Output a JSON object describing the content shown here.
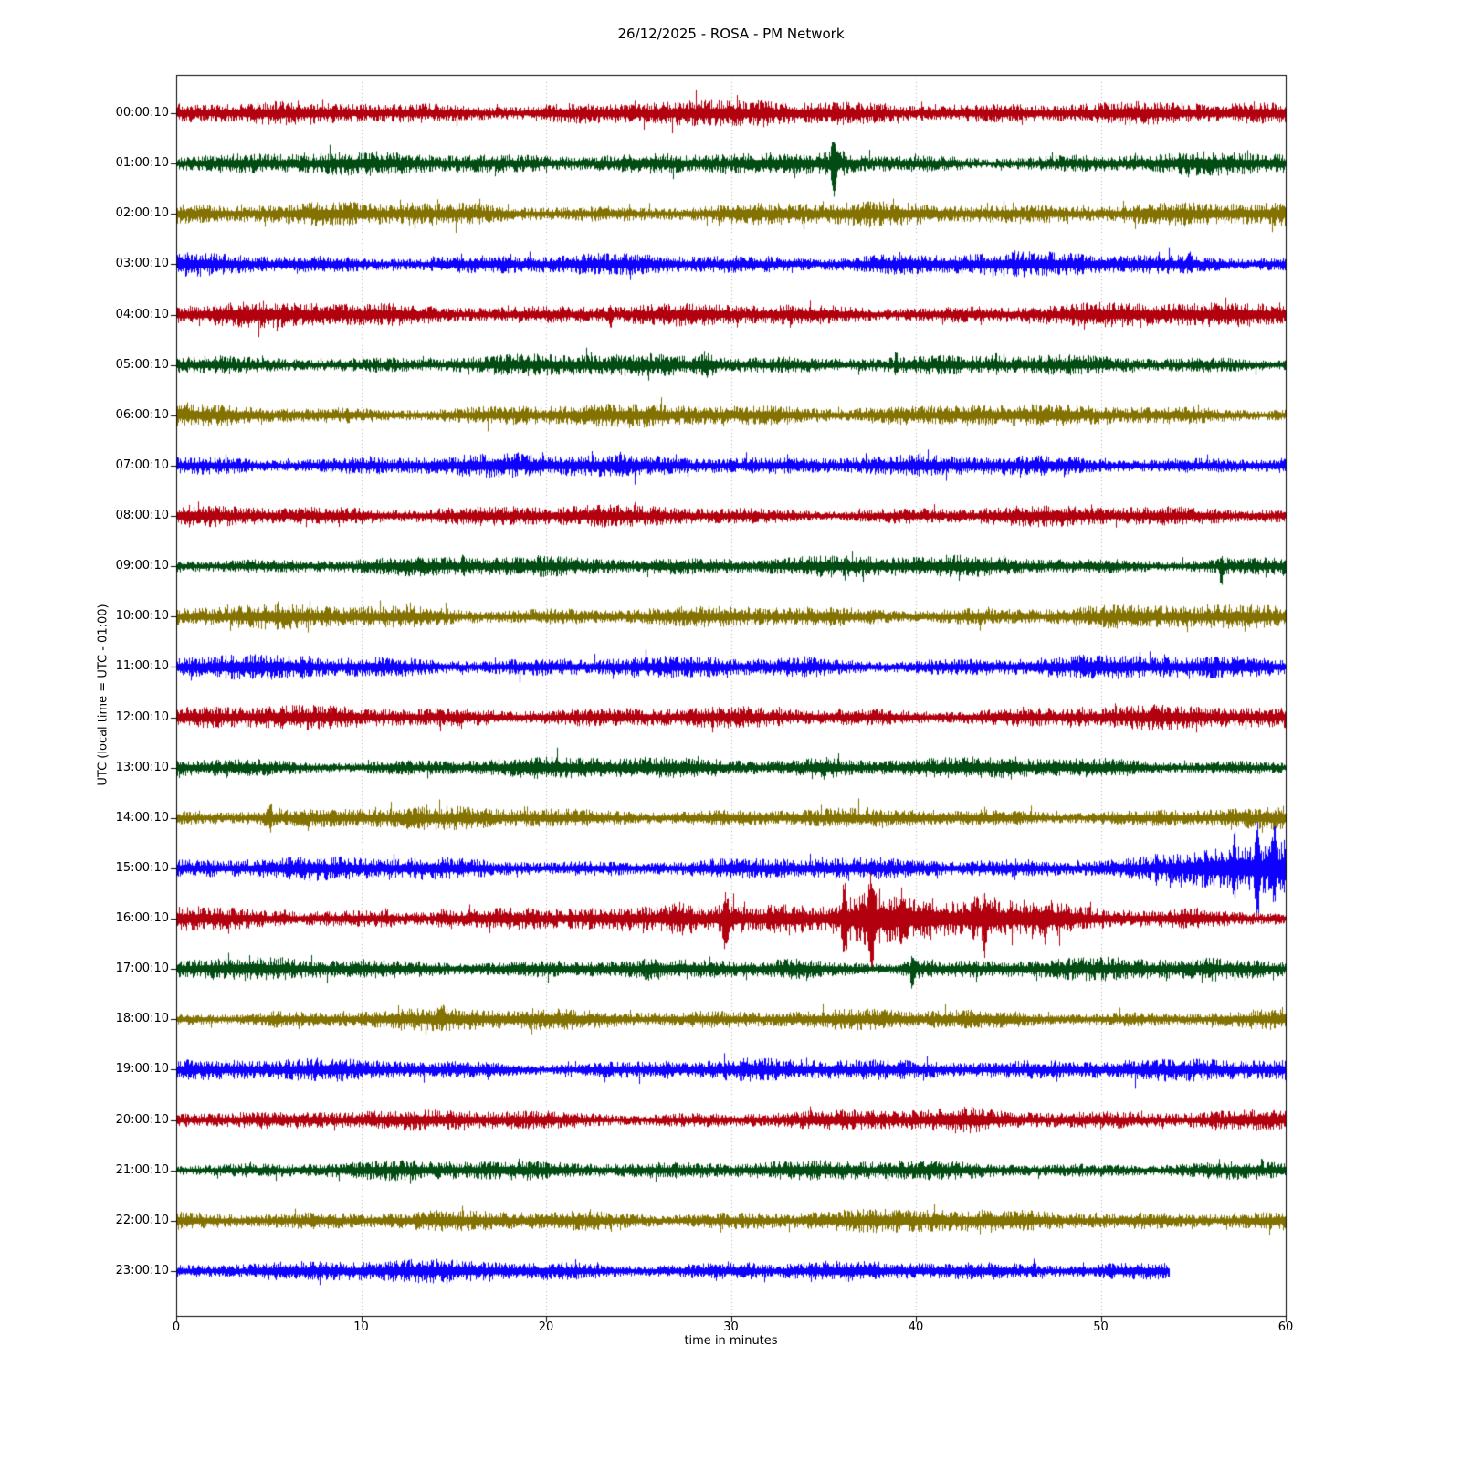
{
  "chart_data": {
    "type": "line",
    "subtype": "helicorder-dayplot-seismogram",
    "title": "26/12/2025 - ROSA - PM Network",
    "date": "26/12/2025",
    "station": "ROSA",
    "network": "PM Network",
    "xlabel": "time in minutes",
    "ylabel": "UTC (local time = UTC - 01:00)",
    "x_range": [
      0,
      60
    ],
    "x_ticks": [
      0,
      10,
      20,
      30,
      40,
      50,
      60
    ],
    "grid": {
      "vertical_dotted_minutes": [
        10,
        20,
        30,
        40,
        50
      ],
      "color": "#b0b0b0"
    },
    "trace_color_cycle": [
      "#B2000F",
      "#004C12",
      "#847200",
      "#0E01FF"
    ],
    "minutes_per_row": 60,
    "rows": [
      {
        "label": "00:00:10",
        "color": "#B2000F",
        "base_amp": 1.05,
        "events": [
          {
            "type": "burst",
            "t": 24.7,
            "w": 0.3,
            "scale": 1.5
          },
          {
            "type": "burst",
            "t": 31.8,
            "w": 0.3,
            "scale": 1.35
          }
        ]
      },
      {
        "label": "01:00:10",
        "color": "#004C12",
        "base_amp": 0.95,
        "events": [
          {
            "type": "spike",
            "t": 35.55,
            "w": 0.22,
            "up": 22,
            "down": 30
          },
          {
            "type": "burst",
            "t": 35.9,
            "w": 0.8,
            "scale": 1.5
          }
        ]
      },
      {
        "label": "02:00:10",
        "color": "#847200",
        "base_amp": 1.0,
        "events": [
          {
            "type": "burst",
            "t": 12.8,
            "w": 0.3,
            "scale": 1.3
          }
        ]
      },
      {
        "label": "03:00:10",
        "color": "#0E01FF",
        "base_amp": 0.95,
        "events": [
          {
            "type": "burst",
            "t": 14.3,
            "w": 0.25,
            "scale": 1.35
          },
          {
            "type": "spike",
            "t": 54.8,
            "w": 0.15,
            "up": 9,
            "down": 5
          }
        ]
      },
      {
        "label": "04:00:10",
        "color": "#B2000F",
        "base_amp": 1.0,
        "events": [
          {
            "type": "spike",
            "t": 23.5,
            "w": 0.15,
            "up": 5,
            "down": 10
          }
        ]
      },
      {
        "label": "05:00:10",
        "color": "#004C12",
        "base_amp": 0.9,
        "events": [
          {
            "type": "burst",
            "t": 28.7,
            "w": 0.5,
            "scale": 1.8
          },
          {
            "type": "spike",
            "t": 38.9,
            "w": 0.12,
            "up": 10,
            "down": 5
          },
          {
            "type": "burst",
            "t": 44.3,
            "w": 0.3,
            "scale": 1.4
          }
        ]
      },
      {
        "label": "06:00:10",
        "color": "#847200",
        "base_amp": 0.95,
        "events": [
          {
            "type": "burst",
            "t": 43.0,
            "w": 1.2,
            "scale": 1.25
          }
        ]
      },
      {
        "label": "07:00:10",
        "color": "#0E01FF",
        "base_amp": 0.95,
        "events": []
      },
      {
        "label": "08:00:10",
        "color": "#B2000F",
        "base_amp": 0.9,
        "events": []
      },
      {
        "label": "09:00:10",
        "color": "#004C12",
        "base_amp": 0.9,
        "events": [
          {
            "type": "spike",
            "t": 15.5,
            "w": 0.12,
            "up": 10,
            "down": 4
          },
          {
            "type": "spike",
            "t": 56.5,
            "w": 0.15,
            "up": 8,
            "down": 18
          }
        ]
      },
      {
        "label": "10:00:10",
        "color": "#847200",
        "base_amp": 0.95,
        "events": []
      },
      {
        "label": "11:00:10",
        "color": "#0E01FF",
        "base_amp": 0.95,
        "events": [
          {
            "type": "burst",
            "t": 34.0,
            "w": 0.8,
            "scale": 1.2
          }
        ]
      },
      {
        "label": "12:00:10",
        "color": "#B2000F",
        "base_amp": 0.95,
        "events": []
      },
      {
        "label": "13:00:10",
        "color": "#004C12",
        "base_amp": 0.9,
        "events": [
          {
            "type": "burst",
            "t": 35.0,
            "w": 0.7,
            "scale": 1.4
          },
          {
            "type": "burst",
            "t": 45.1,
            "w": 0.5,
            "scale": 1.3
          }
        ]
      },
      {
        "label": "14:00:10",
        "color": "#847200",
        "base_amp": 0.9,
        "events": [
          {
            "type": "spike",
            "t": 5.05,
            "w": 0.15,
            "up": 12,
            "down": 6
          },
          {
            "type": "burst",
            "t": 5.1,
            "w": 0.3,
            "scale": 1.3
          }
        ]
      },
      {
        "label": "15:00:10",
        "color": "#0E01FF",
        "base_amp": 0.95,
        "events": [
          {
            "type": "ramp",
            "from": 51.3,
            "to": 60,
            "scale": 2.3
          },
          {
            "type": "burst",
            "t": 56.0,
            "w": 1.5,
            "scale": 1.3
          },
          {
            "type": "spike",
            "t": 53.0,
            "w": 0.12,
            "up": 10,
            "down": 8
          },
          {
            "type": "spike",
            "t": 57.2,
            "w": 0.15,
            "up": 20,
            "down": 16
          },
          {
            "type": "spike",
            "t": 58.45,
            "w": 0.2,
            "up": 32,
            "down": 34
          },
          {
            "type": "spike",
            "t": 59.35,
            "w": 0.15,
            "up": 30,
            "down": 22
          }
        ]
      },
      {
        "label": "16:00:10",
        "color": "#B2000F",
        "base_amp": 1.05,
        "events": [
          {
            "type": "burst",
            "t": 5.8,
            "w": 0.4,
            "scale": 1.4
          },
          {
            "type": "burst",
            "t": 11.3,
            "w": 0.4,
            "scale": 1.45
          },
          {
            "type": "burst",
            "t": 14.4,
            "w": 0.4,
            "scale": 1.4
          },
          {
            "type": "burst",
            "t": 27.5,
            "w": 1.0,
            "scale": 1.8
          },
          {
            "type": "burst",
            "t": 29.8,
            "w": 0.8,
            "scale": 2.1
          },
          {
            "type": "burst",
            "t": 33.0,
            "w": 1.8,
            "scale": 1.7
          },
          {
            "type": "burst",
            "t": 36.3,
            "w": 1.2,
            "scale": 2.2
          },
          {
            "type": "burst",
            "t": 38.0,
            "w": 1.2,
            "scale": 2.2
          },
          {
            "type": "burst",
            "t": 40.5,
            "w": 1.2,
            "scale": 1.8
          },
          {
            "type": "burst",
            "t": 43.5,
            "w": 1.2,
            "scale": 2.0
          },
          {
            "type": "burst",
            "t": 46.5,
            "w": 1.8,
            "scale": 1.5
          },
          {
            "type": "burst",
            "t": 55.0,
            "w": 0.8,
            "scale": 1.25
          },
          {
            "type": "spike",
            "t": 29.7,
            "w": 0.2,
            "up": 14,
            "down": 26
          },
          {
            "type": "spike",
            "t": 36.1,
            "w": 0.2,
            "up": 22,
            "down": 30
          },
          {
            "type": "spike",
            "t": 37.6,
            "w": 0.25,
            "up": 30,
            "down": 33
          },
          {
            "type": "spike",
            "t": 39.2,
            "w": 0.15,
            "up": 16,
            "down": 20
          },
          {
            "type": "spike",
            "t": 43.7,
            "w": 0.18,
            "up": 14,
            "down": 22
          }
        ]
      },
      {
        "label": "17:00:10",
        "color": "#004C12",
        "base_amp": 0.9,
        "events": [
          {
            "type": "burst",
            "t": 25.6,
            "w": 0.4,
            "scale": 1.3
          },
          {
            "type": "burst",
            "t": 33.2,
            "w": 1.0,
            "scale": 1.35
          },
          {
            "type": "burst",
            "t": 39.9,
            "w": 0.8,
            "scale": 1.6
          },
          {
            "type": "spike",
            "t": 39.8,
            "w": 0.15,
            "up": 8,
            "down": 18
          },
          {
            "type": "burst",
            "t": 55.9,
            "w": 0.4,
            "scale": 1.3
          }
        ]
      },
      {
        "label": "18:00:10",
        "color": "#847200",
        "base_amp": 0.9,
        "events": [
          {
            "type": "burst",
            "t": 5.4,
            "w": 0.3,
            "scale": 1.25
          },
          {
            "type": "spike",
            "t": 14.4,
            "w": 0.15,
            "up": 12,
            "down": 5
          }
        ]
      },
      {
        "label": "19:00:10",
        "color": "#0E01FF",
        "base_amp": 0.95,
        "events": [
          {
            "type": "burst",
            "t": 26.4,
            "w": 0.3,
            "scale": 1.3
          }
        ]
      },
      {
        "label": "20:00:10",
        "color": "#B2000F",
        "base_amp": 0.9,
        "events": [
          {
            "type": "burst",
            "t": 31.0,
            "w": 0.3,
            "scale": 1.2
          },
          {
            "type": "burst",
            "t": 42.5,
            "w": 1.5,
            "scale": 1.25
          }
        ]
      },
      {
        "label": "21:00:10",
        "color": "#004C12",
        "base_amp": 0.85,
        "events": []
      },
      {
        "label": "22:00:10",
        "color": "#847200",
        "base_amp": 0.95,
        "events": []
      },
      {
        "label": "23:00:10",
        "color": "#0E01FF",
        "base_amp": 0.9,
        "cutoff": 53.7,
        "events": [
          {
            "type": "burst",
            "t": 30.7,
            "w": 0.5,
            "scale": 1.35
          },
          {
            "type": "spike",
            "t": 46.4,
            "w": 0.12,
            "up": 9,
            "down": 4
          }
        ]
      }
    ]
  }
}
